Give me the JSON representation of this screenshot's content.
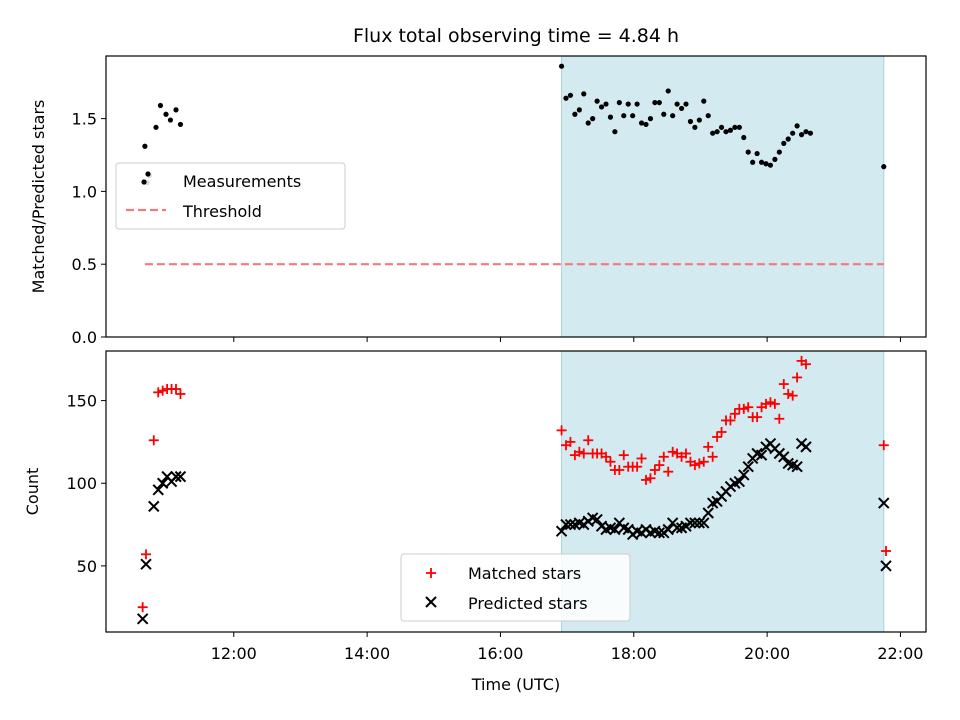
{
  "figure": {
    "title": "Flux total observing time = 4.84 h",
    "xlabel": "Time (UTC)"
  },
  "chart_data": [
    {
      "type": "scatter",
      "ylabel": "Matched/Predicted stars",
      "xlim": [
        "10:05",
        "22:23"
      ],
      "ylim": [
        0,
        1.93
      ],
      "yticks": [
        0.0,
        0.5,
        1.0,
        1.5
      ],
      "ytick_labels": [
        "0.0",
        "0.5",
        "1.0",
        "1.5"
      ],
      "observing_window": {
        "start": "16:55",
        "end": "21:45",
        "color": "#d3eaf0"
      },
      "legend": {
        "placement": "center-left",
        "entries": [
          "Measurements",
          "Threshold"
        ]
      },
      "series": [
        {
          "name": "Measurements",
          "marker": "dot",
          "color": "#000000",
          "points": [
            [
              "10:40",
              1.31
            ],
            [
              "10:42",
              1.06
            ],
            [
              "10:44",
              1.11
            ],
            [
              "10:50",
              1.44
            ],
            [
              "10:54",
              1.59
            ],
            [
              "10:59",
              1.53
            ],
            [
              "11:03",
              1.49
            ],
            [
              "11:08",
              1.56
            ],
            [
              "11:12",
              1.46
            ],
            [
              "16:55",
              1.86
            ],
            [
              "16:59",
              1.64
            ],
            [
              "17:03",
              1.66
            ],
            [
              "17:07",
              1.53
            ],
            [
              "17:11",
              1.56
            ],
            [
              "17:15",
              1.67
            ],
            [
              "17:19",
              1.47
            ],
            [
              "17:23",
              1.5
            ],
            [
              "17:27",
              1.62
            ],
            [
              "17:31",
              1.58
            ],
            [
              "17:35",
              1.6
            ],
            [
              "17:39",
              1.51
            ],
            [
              "17:43",
              1.41
            ],
            [
              "17:47",
              1.61
            ],
            [
              "17:51",
              1.52
            ],
            [
              "17:55",
              1.6
            ],
            [
              "17:59",
              1.52
            ],
            [
              "18:03",
              1.6
            ],
            [
              "18:07",
              1.47
            ],
            [
              "18:11",
              1.46
            ],
            [
              "18:15",
              1.5
            ],
            [
              "18:19",
              1.61
            ],
            [
              "18:23",
              1.61
            ],
            [
              "18:27",
              1.53
            ],
            [
              "18:31",
              1.69
            ],
            [
              "18:35",
              1.52
            ],
            [
              "18:39",
              1.6
            ],
            [
              "18:43",
              1.57
            ],
            [
              "18:47",
              1.6
            ],
            [
              "18:51",
              1.48
            ],
            [
              "18:55",
              1.44
            ],
            [
              "18:59",
              1.49
            ],
            [
              "19:03",
              1.62
            ],
            [
              "19:07",
              1.52
            ],
            [
              "19:11",
              1.4
            ],
            [
              "19:15",
              1.41
            ],
            [
              "19:19",
              1.44
            ],
            [
              "19:23",
              1.41
            ],
            [
              "19:27",
              1.42
            ],
            [
              "19:31",
              1.44
            ],
            [
              "19:35",
              1.44
            ],
            [
              "19:39",
              1.37
            ],
            [
              "19:43",
              1.27
            ],
            [
              "19:47",
              1.2
            ],
            [
              "19:51",
              1.26
            ],
            [
              "19:55",
              1.2
            ],
            [
              "19:59",
              1.19
            ],
            [
              "20:03",
              1.18
            ],
            [
              "20:07",
              1.22
            ],
            [
              "20:11",
              1.27
            ],
            [
              "20:15",
              1.33
            ],
            [
              "20:19",
              1.36
            ],
            [
              "20:23",
              1.4
            ],
            [
              "20:27",
              1.45
            ],
            [
              "20:31",
              1.39
            ],
            [
              "20:35",
              1.41
            ],
            [
              "20:39",
              1.4
            ],
            [
              "21:45",
              1.17
            ]
          ]
        },
        {
          "name": "Threshold",
          "marker": "dashed-line",
          "color": "#f47a7a",
          "points": [
            [
              "10:40",
              0.5
            ],
            [
              "21:45",
              0.5
            ]
          ]
        }
      ]
    },
    {
      "type": "scatter",
      "ylabel": "Count",
      "xlim": [
        "10:05",
        "22:23"
      ],
      "ylim": [
        10,
        180
      ],
      "yticks": [
        50,
        100,
        150
      ],
      "ytick_labels": [
        "50",
        "100",
        "150"
      ],
      "xticks": [
        "12:00",
        "14:00",
        "16:00",
        "18:00",
        "20:00",
        "22:00"
      ],
      "observing_window": {
        "start": "16:55",
        "end": "21:45",
        "color": "#d3eaf0"
      },
      "legend": {
        "placement": "lower-center",
        "entries": [
          "Matched stars",
          "Predicted stars"
        ]
      },
      "series": [
        {
          "name": "Matched stars",
          "marker": "plus",
          "color": "#ff0000",
          "points": [
            [
              "10:38",
              25
            ],
            [
              "10:41",
              57
            ],
            [
              "10:48",
              126
            ],
            [
              "10:52",
              155
            ],
            [
              "10:56",
              156
            ],
            [
              "11:00",
              157
            ],
            [
              "11:04",
              157
            ],
            [
              "11:08",
              157
            ],
            [
              "11:12",
              154
            ],
            [
              "16:55",
              132
            ],
            [
              "16:59",
              123
            ],
            [
              "17:03",
              125
            ],
            [
              "17:07",
              117
            ],
            [
              "17:11",
              119
            ],
            [
              "17:15",
              118
            ],
            [
              "17:19",
              126
            ],
            [
              "17:23",
              118
            ],
            [
              "17:27",
              118
            ],
            [
              "17:31",
              118
            ],
            [
              "17:35",
              116
            ],
            [
              "17:39",
              113
            ],
            [
              "17:43",
              108
            ],
            [
              "17:47",
              108
            ],
            [
              "17:51",
              117
            ],
            [
              "17:55",
              110
            ],
            [
              "17:59",
              110
            ],
            [
              "18:03",
              110
            ],
            [
              "18:07",
              115
            ],
            [
              "18:11",
              102
            ],
            [
              "18:15",
              103
            ],
            [
              "18:19",
              108
            ],
            [
              "18:23",
              111
            ],
            [
              "18:27",
              116
            ],
            [
              "18:31",
              107
            ],
            [
              "18:35",
              119
            ],
            [
              "18:39",
              118
            ],
            [
              "18:43",
              116
            ],
            [
              "18:47",
              118
            ],
            [
              "18:51",
              113
            ],
            [
              "18:55",
              111
            ],
            [
              "18:59",
              112
            ],
            [
              "19:03",
              113
            ],
            [
              "19:07",
              122
            ],
            [
              "19:11",
              116
            ],
            [
              "19:15",
              128
            ],
            [
              "19:19",
              131
            ],
            [
              "19:23",
              138
            ],
            [
              "19:27",
              138
            ],
            [
              "19:31",
              142
            ],
            [
              "19:35",
              145
            ],
            [
              "19:39",
              145
            ],
            [
              "19:43",
              146
            ],
            [
              "19:47",
              140
            ],
            [
              "19:51",
              140
            ],
            [
              "19:55",
              146
            ],
            [
              "19:59",
              148
            ],
            [
              "20:03",
              149
            ],
            [
              "20:07",
              148
            ],
            [
              "20:11",
              139
            ],
            [
              "20:15",
              160
            ],
            [
              "20:19",
              154
            ],
            [
              "20:23",
              153
            ],
            [
              "20:27",
              164
            ],
            [
              "20:31",
              174
            ],
            [
              "20:35",
              172
            ],
            [
              "21:45",
              123
            ],
            [
              "21:47",
              59
            ]
          ]
        },
        {
          "name": "Predicted stars",
          "marker": "x",
          "color": "#000000",
          "points": [
            [
              "10:38",
              18
            ],
            [
              "10:41",
              51
            ],
            [
              "10:48",
              86
            ],
            [
              "10:52",
              96
            ],
            [
              "10:56",
              100
            ],
            [
              "11:00",
              104
            ],
            [
              "11:04",
              101
            ],
            [
              "11:08",
              104
            ],
            [
              "11:12",
              104
            ],
            [
              "16:55",
              71
            ],
            [
              "16:59",
              75
            ],
            [
              "17:03",
              75
            ],
            [
              "17:07",
              75
            ],
            [
              "17:11",
              76
            ],
            [
              "17:15",
              75
            ],
            [
              "17:19",
              77
            ],
            [
              "17:23",
              79
            ],
            [
              "17:27",
              78
            ],
            [
              "17:31",
              74
            ],
            [
              "17:35",
              72
            ],
            [
              "17:39",
              73
            ],
            [
              "17:43",
              72
            ],
            [
              "17:47",
              76
            ],
            [
              "17:51",
              73
            ],
            [
              "17:55",
              72
            ],
            [
              "17:59",
              69
            ],
            [
              "18:03",
              71
            ],
            [
              "18:07",
              70
            ],
            [
              "18:11",
              72
            ],
            [
              "18:15",
              70
            ],
            [
              "18:19",
              71
            ],
            [
              "18:23",
              70
            ],
            [
              "18:27",
              70
            ],
            [
              "18:31",
              72
            ],
            [
              "18:35",
              76
            ],
            [
              "18:39",
              73
            ],
            [
              "18:43",
              73
            ],
            [
              "18:47",
              74
            ],
            [
              "18:51",
              76
            ],
            [
              "18:55",
              76
            ],
            [
              "18:59",
              76
            ],
            [
              "19:03",
              76
            ],
            [
              "19:07",
              82
            ],
            [
              "19:11",
              88
            ],
            [
              "19:15",
              89
            ],
            [
              "19:19",
              92
            ],
            [
              "19:23",
              95
            ],
            [
              "19:27",
              98
            ],
            [
              "19:31",
              100
            ],
            [
              "19:35",
              101
            ],
            [
              "19:39",
              105
            ],
            [
              "19:43",
              110
            ],
            [
              "19:47",
              115
            ],
            [
              "19:51",
              118
            ],
            [
              "19:55",
              117
            ],
            [
              "19:59",
              122
            ],
            [
              "20:03",
              124
            ],
            [
              "20:07",
              121
            ],
            [
              "20:11",
              118
            ],
            [
              "20:15",
              116
            ],
            [
              "20:19",
              112
            ],
            [
              "20:23",
              111
            ],
            [
              "20:27",
              110
            ],
            [
              "20:31",
              124
            ],
            [
              "20:35",
              122
            ],
            [
              "21:45",
              88
            ],
            [
              "21:47",
              50
            ]
          ]
        }
      ]
    }
  ]
}
